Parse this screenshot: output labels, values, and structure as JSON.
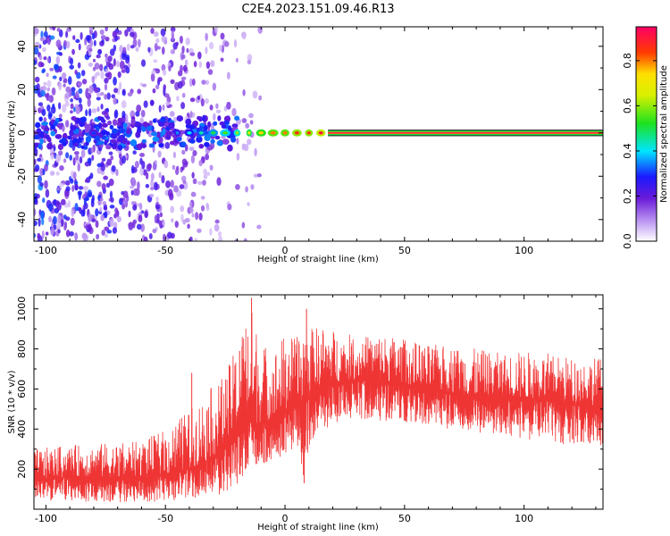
{
  "title": "C2E4.2023.151.09.46.R13",
  "chart_data": [
    {
      "type": "heatmap",
      "xlabel": "Height of straight line (km)",
      "ylabel": "Frequency (Hz)",
      "xlim": [
        -105,
        133
      ],
      "ylim": [
        -50,
        49
      ],
      "xticks": [
        -100,
        -50,
        0,
        50,
        100
      ],
      "yticks": [
        -40,
        -20,
        0,
        20,
        40
      ],
      "colorbar": {
        "label": "Normalized spectral amplitude",
        "range": [
          0,
          0.95
        ],
        "ticks": [
          0.0,
          0.2,
          0.4,
          0.6,
          0.8
        ]
      },
      "features": {
        "carrier_frequency_hz": 0,
        "carrier_band_hz": [
          -1.5,
          1.5
        ],
        "carrier_continuous_from_km": 18,
        "scatter_extent_km": [
          -105,
          -20
        ],
        "scatter_amplitude_range": [
          0.05,
          0.25
        ],
        "segments": [
          {
            "x": -80,
            "amplitude": 0.3
          },
          {
            "x": -45,
            "amplitude": 0.35
          },
          {
            "x": -40,
            "amplitude": 0.4
          },
          {
            "x": -35,
            "amplitude": 0.45
          },
          {
            "x": -30,
            "amplitude": 0.5
          },
          {
            "x": -25,
            "amplitude": 0.55
          },
          {
            "x": -20,
            "amplitude": 0.6
          },
          {
            "x": -15,
            "amplitude": 0.7
          },
          {
            "x": -10,
            "amplitude": 0.75
          },
          {
            "x": -5,
            "amplitude": 0.8
          },
          {
            "x": 0,
            "amplitude": 0.8
          },
          {
            "x": 5,
            "amplitude": 0.85
          },
          {
            "x": 10,
            "amplitude": 0.85
          },
          {
            "x": 15,
            "amplitude": 0.9
          },
          {
            "x": 133,
            "amplitude": 0.95
          }
        ]
      }
    },
    {
      "type": "line",
      "xlabel": "Height of straight line (km)",
      "ylabel": "SNR (10 * v/v)",
      "xlim": [
        -105,
        133
      ],
      "ylim": [
        0,
        1070
      ],
      "xticks": [
        -100,
        -50,
        0,
        50,
        100
      ],
      "yticks": [
        200,
        400,
        600,
        800,
        1000
      ],
      "color": "#ef3434",
      "series": [
        {
          "x": [
            -105,
            -90,
            -75,
            -60,
            -50,
            -40,
            -30,
            -25,
            -20,
            -15,
            -10,
            -5,
            0,
            5,
            8,
            10,
            15,
            20,
            25,
            30,
            40,
            50,
            60,
            70,
            80,
            90,
            100,
            110,
            120,
            133
          ],
          "low": [
            40,
            40,
            35,
            35,
            40,
            50,
            60,
            80,
            120,
            180,
            220,
            250,
            270,
            300,
            150,
            300,
            380,
            420,
            440,
            450,
            440,
            420,
            400,
            390,
            380,
            370,
            350,
            330,
            320,
            300
          ],
          "high": [
            300,
            320,
            330,
            340,
            400,
            500,
            620,
            680,
            820,
            1060,
            840,
            800,
            880,
            860,
            980,
            900,
            920,
            900,
            880,
            860,
            880,
            850,
            820,
            820,
            800,
            780,
            790,
            780,
            760,
            760
          ],
          "mean": [
            150,
            160,
            160,
            150,
            170,
            200,
            260,
            300,
            380,
            440,
            420,
            440,
            480,
            520,
            500,
            560,
            600,
            630,
            640,
            650,
            640,
            620,
            600,
            580,
            560,
            560,
            550,
            540,
            520,
            520
          ]
        }
      ],
      "spikes": [
        {
          "x": -39,
          "y": 680
        },
        {
          "x": -19,
          "y": 790
        },
        {
          "x": -14,
          "y": 1055
        },
        {
          "x": 9,
          "y": 1000
        },
        {
          "x": 8,
          "y": 130
        }
      ]
    }
  ]
}
